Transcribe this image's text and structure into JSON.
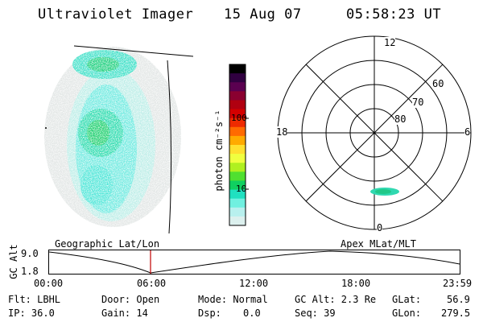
{
  "header": {
    "instrument": "Ultraviolet Imager",
    "date": "15 Aug 07",
    "time": "05:58:23 UT"
  },
  "colorbar": {
    "unit_label": "photon cm⁻²s⁻¹",
    "ticks": [
      "100",
      "10"
    ],
    "colors": [
      "#000000",
      "#300040",
      "#5a0050",
      "#8a0030",
      "#b00010",
      "#d40000",
      "#ee2a00",
      "#ff6a00",
      "#ffaa00",
      "#ffe030",
      "#f0ff40",
      "#b0f020",
      "#50e030",
      "#10d060",
      "#20e0c0",
      "#70f0e0",
      "#b8f0ee",
      "#dcf0ee"
    ]
  },
  "polar": {
    "mlt_labels": {
      "top": "12",
      "left": "18",
      "right": "6",
      "bottom": "0"
    },
    "lat_labels": [
      "60",
      "70",
      "80"
    ]
  },
  "timeline": {
    "left_title": "Geographic Lat/Lon",
    "right_title": "Apex MLat/MLT",
    "y_label": "GC Alt",
    "y_ticks": [
      "9.0",
      "1.8"
    ],
    "x_ticks": [
      "00:00",
      "06:00",
      "12:00",
      "18:00",
      "23:59"
    ]
  },
  "status": {
    "flt": "Flt: LBHL",
    "ip": "IP: 36.0",
    "door": "Door: Open",
    "gain": "Gain: 14",
    "mode": "Mode: Normal",
    "dsp_label": "Dsp:",
    "dsp_value": "0.0",
    "gc_alt": "GC Alt: 2.3 Re",
    "seq": "Seq: 39",
    "glat_label": "GLat:",
    "glat_value": "56.9",
    "glon_label": "GLon:",
    "glon_value": "279.5"
  }
}
